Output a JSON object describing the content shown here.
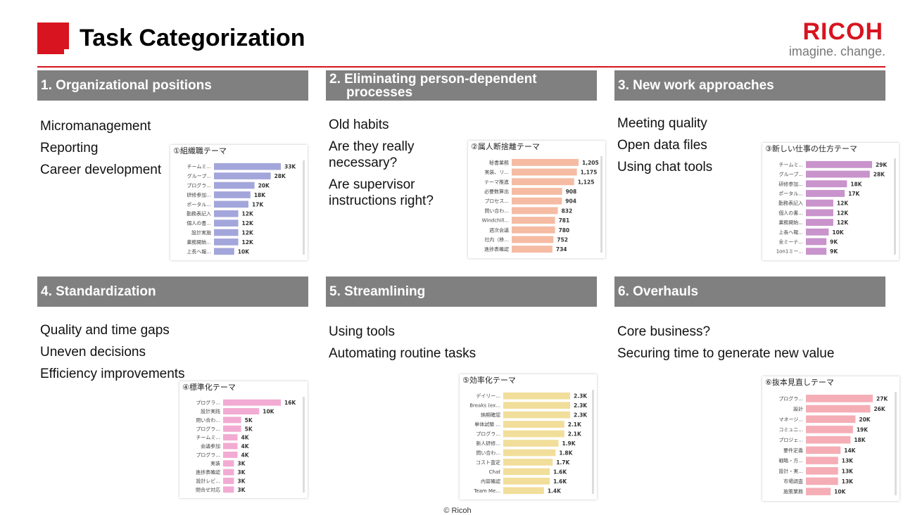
{
  "header": {
    "title": "Task Categorization",
    "logo": "RICOH",
    "tagline": "imagine. change."
  },
  "sections": [
    {
      "title": "1. Organizational positions",
      "items": [
        "Micromanagement",
        "Reporting",
        "Career development"
      ]
    },
    {
      "title": "2. Eliminating person-dependent processes",
      "items": [
        "Old habits",
        "Are they really necessary?",
        "Are supervisor instructions right?"
      ]
    },
    {
      "title": "3. New work approaches",
      "items": [
        "Meeting quality",
        "Open data files",
        "Using chat tools"
      ]
    },
    {
      "title": "4. Standardization",
      "items": [
        "Quality and time gaps",
        "Uneven decisions",
        "Efficiency improvements"
      ]
    },
    {
      "title": "5. Streamlining",
      "items": [
        "Using tools",
        "Automating routine tasks"
      ]
    },
    {
      "title": "6. Overhauls",
      "items": [
        "Core business?",
        "Securing time to generate new value"
      ]
    }
  ],
  "chart_data": [
    {
      "type": "bar",
      "orientation": "horizontal",
      "title": "①組織職テーマ",
      "color": "#a3a6da",
      "categories": [
        "チームミ...",
        "グループ...",
        "プログラ...",
        "研修参加...",
        "ポータル...",
        "勤務表記入",
        "個人の書...",
        "設計実施",
        "業務開始...",
        "上長へ報..."
      ],
      "values": [
        33000,
        28000,
        20000,
        18000,
        17000,
        12000,
        12000,
        12000,
        12000,
        10000
      ],
      "value_labels": [
        "33K",
        "28K",
        "20K",
        "18K",
        "17K",
        "12K",
        "12K",
        "12K",
        "12K",
        "10K"
      ]
    },
    {
      "type": "bar",
      "orientation": "horizontal",
      "title": "②属人断捨離テーマ",
      "color": "#f5bba3",
      "categories": [
        "秘書業務",
        "実装、リ...",
        "テーマ推進",
        "必要数算出",
        "プロセス...",
        "問い合わ...",
        "Windchill...",
        "週次会議",
        "社内（移...",
        "進捗表確認"
      ],
      "values": [
        1205,
        1175,
        1125,
        908,
        904,
        832,
        781,
        780,
        752,
        734
      ],
      "value_labels": [
        "1,205",
        "1,175",
        "1,125",
        "908",
        "904",
        "832",
        "781",
        "780",
        "752",
        "734"
      ]
    },
    {
      "type": "bar",
      "orientation": "horizontal",
      "title": "③新しい仕事の仕方テーマ",
      "color": "#c993cc",
      "categories": [
        "チームミ...",
        "グループ...",
        "研修参加...",
        "ポータル...",
        "勤務表記入",
        "個人の書...",
        "業務開始...",
        "上長へ報...",
        "全ミーテ...",
        "1on1ミー..."
      ],
      "values": [
        29000,
        28000,
        18000,
        17000,
        12000,
        12000,
        12000,
        10000,
        9000,
        9000
      ],
      "value_labels": [
        "29K",
        "28K",
        "18K",
        "17K",
        "12K",
        "12K",
        "12K",
        "10K",
        "9K",
        "9K"
      ]
    },
    {
      "type": "bar",
      "orientation": "horizontal",
      "title": "④標準化テーマ",
      "color": "#f2abd2",
      "categories": [
        "プログラ...",
        "設計実践",
        "問い合わ...",
        "プログラ...",
        "チームミ...",
        "会議参加",
        "プログラ...",
        "実装",
        "進捗表確認",
        "設計レビ...",
        "問合せ対応"
      ],
      "values": [
        16000,
        10000,
        5000,
        5000,
        4000,
        4000,
        4000,
        3000,
        3000,
        3000,
        3000
      ],
      "value_labels": [
        "16K",
        "10K",
        "5K",
        "5K",
        "4K",
        "4K",
        "4K",
        "3K",
        "3K",
        "3K",
        "3K"
      ]
    },
    {
      "type": "bar",
      "orientation": "horizontal",
      "title": "⑤効率化テーマ",
      "color": "#f1de9a",
      "categories": [
        "デイリー...",
        "Breaks (ex...",
        "納期確認",
        "単体試験 ...",
        "プログラ...",
        "新人研修...",
        "問い合わ...",
        "コスト査定",
        "Chat",
        "内容確認",
        "Team Me..."
      ],
      "values": [
        2300,
        2300,
        2300,
        2100,
        2100,
        1900,
        1800,
        1700,
        1600,
        1600,
        1400
      ],
      "value_labels": [
        "2.3K",
        "2.3K",
        "2.3K",
        "2.1K",
        "2.1K",
        "1.9K",
        "1.8K",
        "1.7K",
        "1.6K",
        "1.6K",
        "1.4K"
      ]
    },
    {
      "type": "bar",
      "orientation": "horizontal",
      "title": "⑥抜本見直しテーマ",
      "color": "#f5adb6",
      "categories": [
        "プログラ...",
        "設計",
        "マネージ...",
        "コミュニ...",
        "プロジェ...",
        "要件定義",
        "戦略・方...",
        "設計・実...",
        "市場調査",
        "施策業務"
      ],
      "values": [
        27000,
        26000,
        20000,
        19000,
        18000,
        14000,
        13000,
        13000,
        13000,
        10000
      ],
      "value_labels": [
        "27K",
        "26K",
        "20K",
        "19K",
        "18K",
        "14K",
        "13K",
        "13K",
        "13K",
        "10K"
      ]
    }
  ],
  "footer": "© Ricoh"
}
